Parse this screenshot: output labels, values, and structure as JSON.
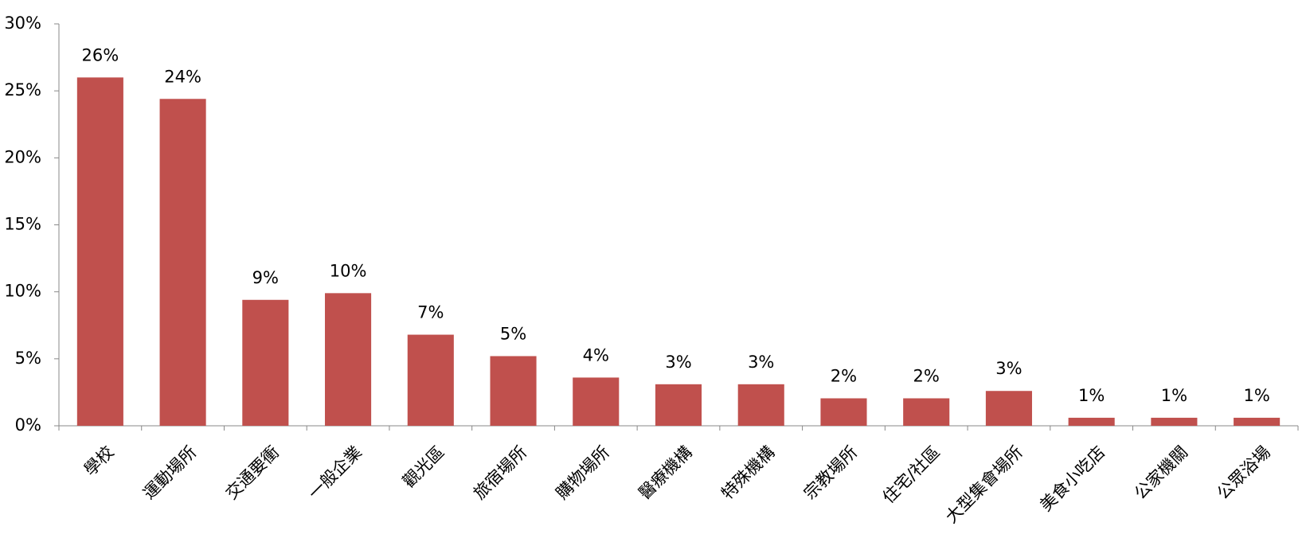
{
  "chart_data": {
    "type": "bar",
    "categories": [
      "學校",
      "運動場所",
      "交通要衝",
      "一般企業",
      "觀光區",
      "旅宿場所",
      "購物場所",
      "醫療機構",
      "特殊機構",
      "宗教場所",
      "住宅/社區",
      "大型集會場所",
      "美食小吃店",
      "公家機關",
      "公眾浴場"
    ],
    "values": [
      26,
      24.4,
      9.4,
      9.9,
      6.8,
      5.2,
      3.6,
      3.1,
      3.1,
      2.05,
      2.05,
      2.6,
      0.6,
      0.6,
      0.6
    ],
    "value_labels": [
      "26%",
      "24%",
      "9%",
      "10%",
      "7%",
      "5%",
      "4%",
      "3%",
      "3%",
      "2%",
      "2%",
      "3%",
      "1%",
      "1%",
      "1%"
    ],
    "color": "#c0504d",
    "ylim": [
      0,
      30
    ],
    "yticks": [
      {
        "value": 0,
        "label": "0%"
      },
      {
        "value": 5,
        "label": "5%"
      },
      {
        "value": 10,
        "label": "10%"
      },
      {
        "value": 15,
        "label": "15%"
      },
      {
        "value": 20,
        "label": "20%"
      },
      {
        "value": 25,
        "label": "25%"
      },
      {
        "value": 30,
        "label": "30%"
      }
    ],
    "grid": false
  }
}
